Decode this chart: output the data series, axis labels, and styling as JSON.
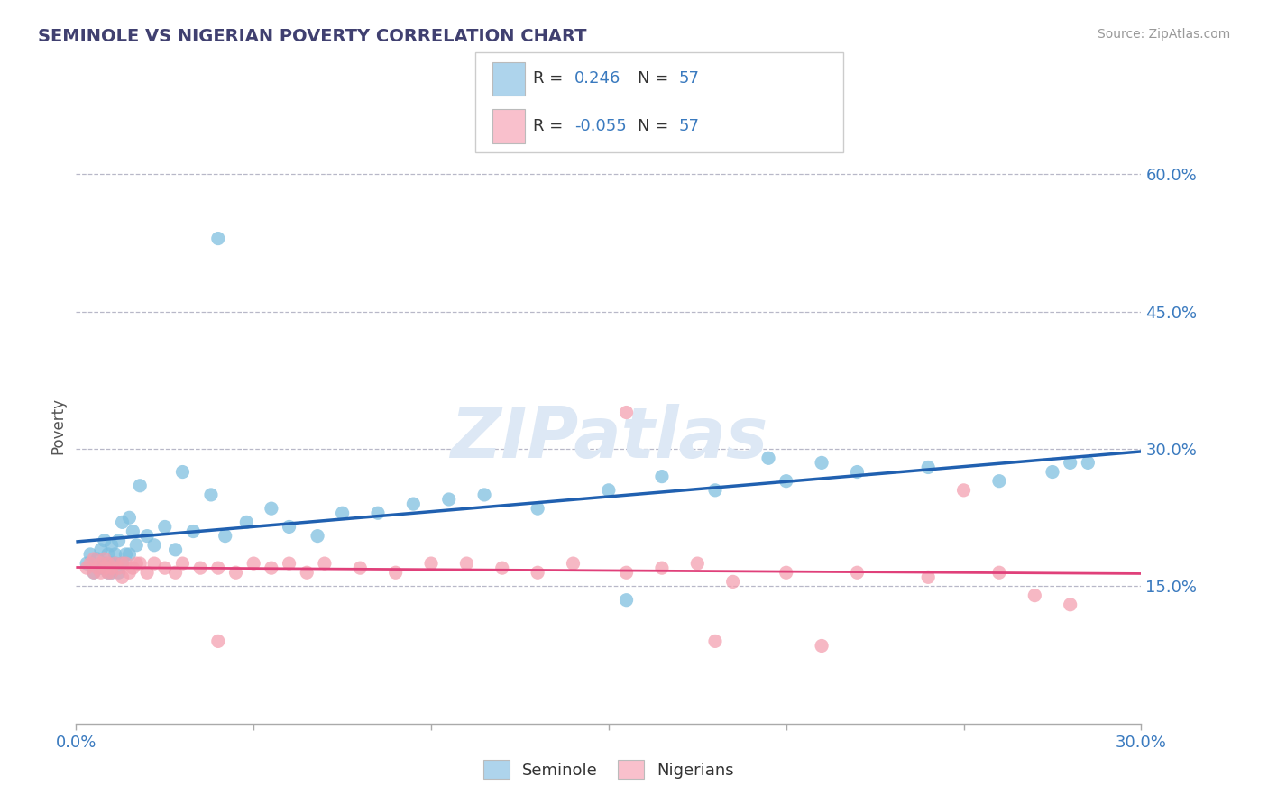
{
  "title": "SEMINOLE VS NIGERIAN POVERTY CORRELATION CHART",
  "source": "Source: ZipAtlas.com",
  "ylabel": "Poverty",
  "xlim": [
    0.0,
    0.3
  ],
  "ylim": [
    0.0,
    0.65
  ],
  "yticks": [
    0.15,
    0.3,
    0.45,
    0.6
  ],
  "ytick_labels": [
    "15.0%",
    "30.0%",
    "45.0%",
    "60.0%"
  ],
  "r_seminole": 0.246,
  "r_nigerian": -0.055,
  "n_seminole": 57,
  "n_nigerian": 57,
  "seminole_dot_color": "#7fbfdf",
  "nigerian_dot_color": "#f4a0b0",
  "seminole_legend_fill": "#aed4ec",
  "nigerian_legend_fill": "#f9c0cc",
  "line_seminole": "#2060b0",
  "line_nigerian": "#e0407a",
  "background_color": "#ffffff",
  "grid_color": "#b8b8c8",
  "title_color": "#404070",
  "watermark": "ZIPatlas",
  "seminole_x": [
    0.003,
    0.004,
    0.005,
    0.006,
    0.007,
    0.007,
    0.008,
    0.008,
    0.009,
    0.009,
    0.01,
    0.01,
    0.01,
    0.011,
    0.011,
    0.012,
    0.012,
    0.013,
    0.013,
    0.014,
    0.015,
    0.015,
    0.016,
    0.017,
    0.018,
    0.02,
    0.022,
    0.025,
    0.028,
    0.03,
    0.033,
    0.038,
    0.042,
    0.048,
    0.055,
    0.06,
    0.068,
    0.075,
    0.085,
    0.095,
    0.105,
    0.115,
    0.13,
    0.15,
    0.165,
    0.18,
    0.2,
    0.22,
    0.24,
    0.26,
    0.275,
    0.28,
    0.285,
    0.195,
    0.21,
    0.155,
    0.04
  ],
  "seminole_y": [
    0.175,
    0.185,
    0.165,
    0.18,
    0.19,
    0.17,
    0.2,
    0.175,
    0.185,
    0.165,
    0.175,
    0.195,
    0.165,
    0.185,
    0.175,
    0.2,
    0.165,
    0.22,
    0.175,
    0.185,
    0.225,
    0.185,
    0.21,
    0.195,
    0.26,
    0.205,
    0.195,
    0.215,
    0.19,
    0.275,
    0.21,
    0.25,
    0.205,
    0.22,
    0.235,
    0.215,
    0.205,
    0.23,
    0.23,
    0.24,
    0.245,
    0.25,
    0.235,
    0.255,
    0.27,
    0.255,
    0.265,
    0.275,
    0.28,
    0.265,
    0.275,
    0.285,
    0.285,
    0.29,
    0.285,
    0.135,
    0.53
  ],
  "nigerian_x": [
    0.003,
    0.004,
    0.005,
    0.005,
    0.006,
    0.007,
    0.007,
    0.008,
    0.008,
    0.009,
    0.009,
    0.01,
    0.01,
    0.011,
    0.012,
    0.013,
    0.013,
    0.014,
    0.015,
    0.016,
    0.017,
    0.018,
    0.02,
    0.022,
    0.025,
    0.028,
    0.03,
    0.035,
    0.04,
    0.045,
    0.05,
    0.055,
    0.06,
    0.065,
    0.07,
    0.08,
    0.09,
    0.1,
    0.11,
    0.12,
    0.13,
    0.14,
    0.155,
    0.165,
    0.175,
    0.185,
    0.2,
    0.22,
    0.24,
    0.26,
    0.27,
    0.155,
    0.28,
    0.25,
    0.21,
    0.18,
    0.04
  ],
  "nigerian_y": [
    0.17,
    0.175,
    0.165,
    0.18,
    0.17,
    0.165,
    0.175,
    0.17,
    0.18,
    0.165,
    0.175,
    0.17,
    0.165,
    0.175,
    0.17,
    0.16,
    0.175,
    0.175,
    0.165,
    0.17,
    0.175,
    0.175,
    0.165,
    0.175,
    0.17,
    0.165,
    0.175,
    0.17,
    0.17,
    0.165,
    0.175,
    0.17,
    0.175,
    0.165,
    0.175,
    0.17,
    0.165,
    0.175,
    0.175,
    0.17,
    0.165,
    0.175,
    0.165,
    0.17,
    0.175,
    0.155,
    0.165,
    0.165,
    0.16,
    0.165,
    0.14,
    0.34,
    0.13,
    0.255,
    0.085,
    0.09,
    0.09
  ]
}
